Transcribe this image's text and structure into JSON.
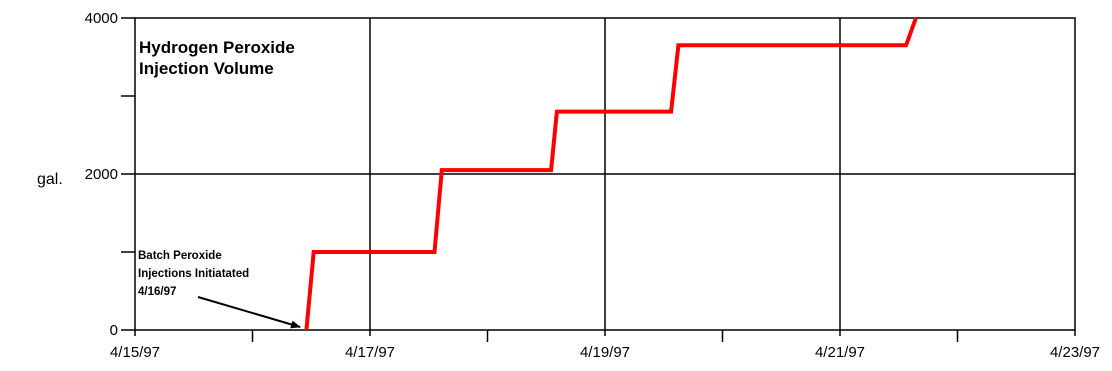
{
  "chart_data": {
    "type": "line",
    "title": [
      "Hydrogen Peroxide",
      "Injection Volume"
    ],
    "ylabel": "gal.",
    "xlabel": "",
    "x_ticks": [
      "4/15/97",
      "4/17/97",
      "4/19/97",
      "4/21/97",
      "4/23/97"
    ],
    "y_ticks": [
      "0",
      "2000",
      "4000"
    ],
    "xlim": [
      "4/15/97",
      "4/23/97"
    ],
    "ylim": [
      0,
      4000
    ],
    "grid": true,
    "line_color": "#ff0000",
    "series": [
      {
        "x": [
          "4/16/97 11:00",
          "4/16/97 12:30",
          "4/17/97 13:10",
          "4/17/97 14:40",
          "4/18/97 13:00",
          "4/18/97 14:10",
          "4/19/97 13:30",
          "4/19/97 15:00",
          "4/21/97 13:30",
          "4/21/97 15:30"
        ],
        "y": [
          0,
          1000,
          1000,
          2050,
          2050,
          2800,
          2800,
          3650,
          3650,
          4000
        ]
      }
    ],
    "annotations": [
      {
        "lines": [
          "Batch Peroxide",
          "Injections Initiatated",
          "4/16/97"
        ]
      }
    ]
  }
}
